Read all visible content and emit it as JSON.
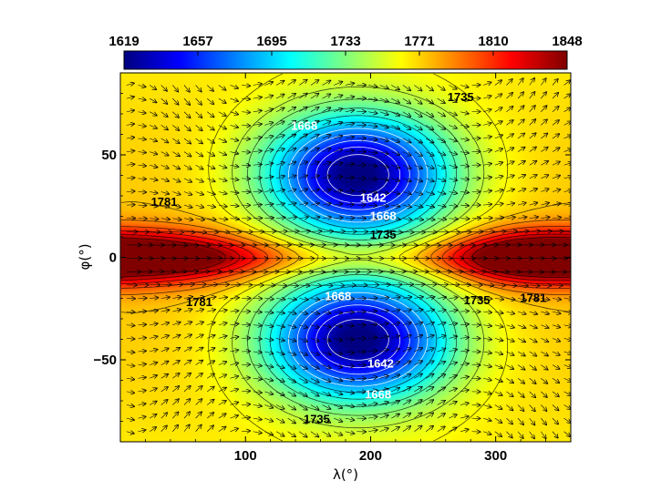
{
  "chart_data": {
    "type": "heatmap",
    "title": "",
    "xlabel": "λ(°)",
    "ylabel": "φ(°)",
    "xlim": [
      0,
      360
    ],
    "ylim": [
      -90,
      90
    ],
    "x_ticks": [
      100,
      200,
      300
    ],
    "y_ticks": [
      50,
      0,
      -50
    ],
    "colorbar": {
      "ticks": [
        "1619",
        "1657",
        "1695",
        "1733",
        "1771",
        "1810",
        "1848"
      ],
      "range": [
        1619,
        1848
      ],
      "colormap": [
        "#00007f",
        "#0000ff",
        "#007fff",
        "#00ffff",
        "#7fff7f",
        "#ffff00",
        "#ff7f00",
        "#ff0000",
        "#7f0000"
      ]
    },
    "features": [
      {
        "name": "northern-minimum",
        "lambda": 190,
        "phi": 40,
        "value": 1625
      },
      {
        "name": "southern-minimum",
        "lambda": 190,
        "phi": -40,
        "value": 1625
      },
      {
        "name": "equatorial-maximum-west",
        "lambda": 30,
        "phi": 0,
        "value": 1840
      },
      {
        "name": "equatorial-maximum-east",
        "lambda": 320,
        "phi": 0,
        "value": 1835
      }
    ],
    "contour_labels": [
      {
        "text": "1735",
        "lambda": 272,
        "phi": 78,
        "tone": "dark"
      },
      {
        "text": "1668",
        "lambda": 147,
        "phi": 64,
        "tone": "light"
      },
      {
        "text": "1781",
        "lambda": 35,
        "phi": 27,
        "tone": "dark"
      },
      {
        "text": "1642",
        "lambda": 202,
        "phi": 29,
        "tone": "light"
      },
      {
        "text": "1668",
        "lambda": 210,
        "phi": 20,
        "tone": "light"
      },
      {
        "text": "1735",
        "lambda": 210,
        "phi": 11,
        "tone": "dark"
      },
      {
        "text": "1781",
        "lambda": 63,
        "phi": -22,
        "tone": "dark"
      },
      {
        "text": "1668",
        "lambda": 174,
        "phi": -19,
        "tone": "light"
      },
      {
        "text": "1735",
        "lambda": 285,
        "phi": -21,
        "tone": "dark"
      },
      {
        "text": "1781",
        "lambda": 330,
        "phi": -20,
        "tone": "dark"
      },
      {
        "text": "1642",
        "lambda": 208,
        "phi": -52,
        "tone": "light"
      },
      {
        "text": "1668",
        "lambda": 206,
        "phi": -67,
        "tone": "light"
      },
      {
        "text": "1735",
        "lambda": 157,
        "phi": -79,
        "tone": "dark"
      }
    ],
    "vector_field": "wind arrows on a regular grid; strongest eastward flow along the equator"
  }
}
